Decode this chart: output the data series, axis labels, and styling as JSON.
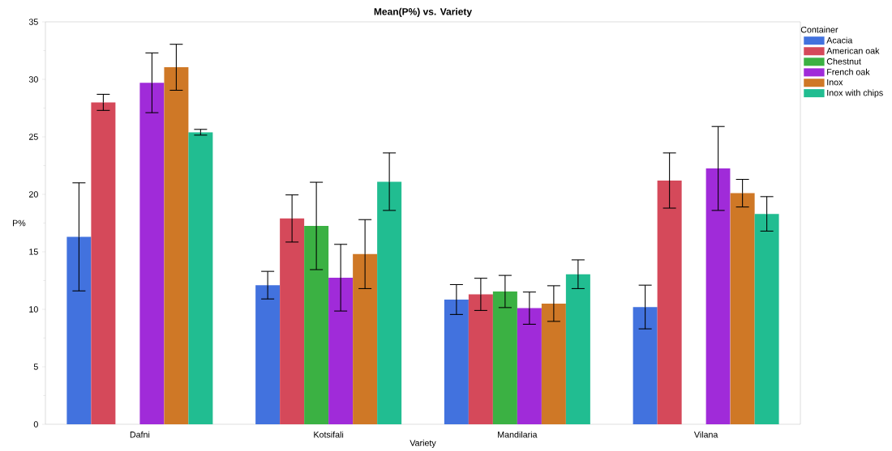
{
  "chart_data": {
    "type": "bar",
    "title": "Mean(P%) vs. Variety",
    "xlabel": "Variety",
    "ylabel": "P%",
    "legend_title": "Container",
    "categories": [
      "Dafni",
      "Kotsifali",
      "Mandilaria",
      "Vilana"
    ],
    "series": [
      {
        "name": "Acacia",
        "color": "#4272de",
        "values": [
          16.3,
          12.1,
          10.85,
          10.2
        ],
        "errors": [
          4.7,
          1.2,
          1.3,
          1.9
        ]
      },
      {
        "name": "American oak",
        "color": "#d5495a",
        "values": [
          28.0,
          17.9,
          11.3,
          21.2
        ],
        "errors": [
          0.7,
          2.05,
          1.4,
          2.4
        ]
      },
      {
        "name": "Chestnut",
        "color": "#3bb143",
        "values": [
          null,
          17.25,
          11.55,
          null
        ],
        "errors": [
          null,
          3.8,
          1.4,
          null
        ]
      },
      {
        "name": "French oak",
        "color": "#a02bd9",
        "values": [
          29.7,
          12.75,
          10.1,
          22.25
        ],
        "errors": [
          2.6,
          2.9,
          1.4,
          3.65
        ]
      },
      {
        "name": "Inox",
        "color": "#cf7826",
        "values": [
          31.05,
          14.8,
          10.5,
          20.1
        ],
        "errors": [
          2.0,
          3.0,
          1.55,
          1.2
        ]
      },
      {
        "name": "Inox with chips",
        "color": "#21bd91",
        "values": [
          25.4,
          21.1,
          13.05,
          18.3
        ],
        "errors": [
          0.25,
          2.5,
          1.25,
          1.5
        ]
      }
    ],
    "ylim": [
      0,
      35
    ],
    "yticks": [
      0,
      {
        "value": 2.5,
        "label": null
      },
      5,
      {
        "value": 7.5,
        "label": null
      },
      10,
      {
        "value": 12.5,
        "label": null
      },
      15,
      {
        "value": 17.5,
        "label": null
      },
      20,
      {
        "value": 22.5,
        "label": null
      },
      25,
      {
        "value": 27.5,
        "label": null
      },
      30,
      {
        "value": 32.5,
        "label": null
      },
      35
    ],
    "legend": "right"
  }
}
